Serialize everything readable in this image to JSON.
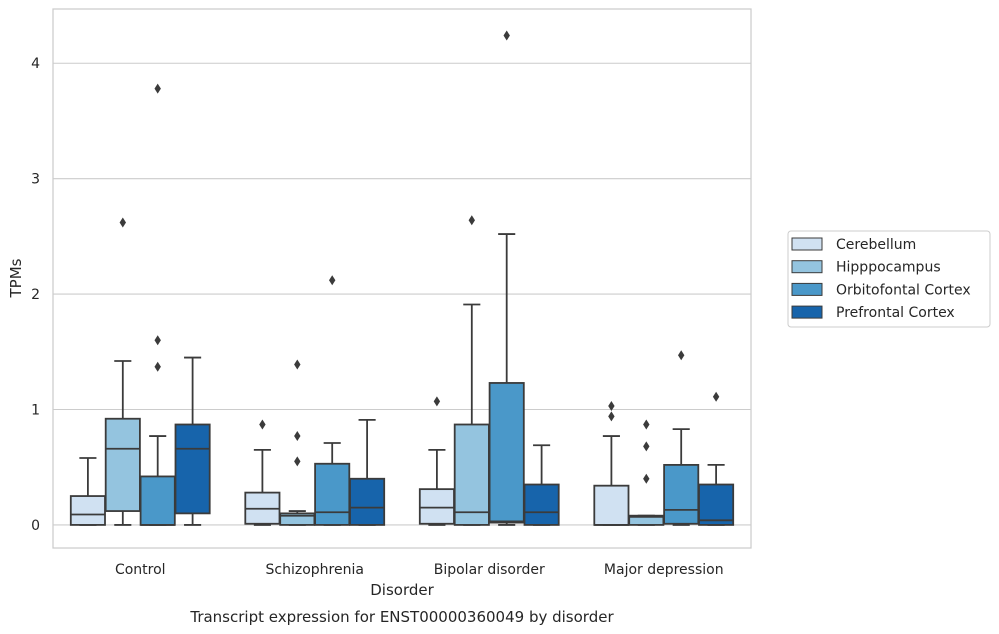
{
  "caption": "Transcript expression for ENST00000360049 by disorder",
  "chart_data": {
    "type": "box",
    "title": "",
    "xlabel": "Disorder",
    "ylabel": "TPMs",
    "ylim": [
      -0.2,
      4.47
    ],
    "yticks": [
      0,
      1,
      2,
      3,
      4
    ],
    "grid": true,
    "legend_position": "right",
    "categories": [
      "Control",
      "Schizophrenia",
      "Bipolar disorder",
      "Major depression"
    ],
    "series": [
      {
        "name": "Cerebellum",
        "color": "#d0e1f2",
        "boxes": [
          {
            "whislo": 0.0,
            "q1": 0.0,
            "med": 0.09,
            "q3": 0.25,
            "whishi": 0.58,
            "fliers": []
          },
          {
            "whislo": 0.0,
            "q1": 0.01,
            "med": 0.14,
            "q3": 0.28,
            "whishi": 0.65,
            "fliers": [
              0.87
            ]
          },
          {
            "whislo": 0.0,
            "q1": 0.01,
            "med": 0.15,
            "q3": 0.31,
            "whishi": 0.65,
            "fliers": [
              1.07
            ]
          },
          {
            "whislo": 0.0,
            "q1": 0.0,
            "med": 0.0,
            "q3": 0.34,
            "whishi": 0.77,
            "fliers": [
              0.94,
              1.03
            ]
          }
        ]
      },
      {
        "name": "Hipppocampus",
        "color": "#94c4df",
        "boxes": [
          {
            "whislo": 0.0,
            "q1": 0.12,
            "med": 0.66,
            "q3": 0.92,
            "whishi": 1.42,
            "fliers": [
              2.62
            ]
          },
          {
            "whislo": 0.0,
            "q1": 0.0,
            "med": 0.08,
            "q3": 0.1,
            "whishi": 0.12,
            "fliers": [
              0.55,
              0.77,
              1.39
            ]
          },
          {
            "whislo": 0.0,
            "q1": 0.0,
            "med": 0.11,
            "q3": 0.87,
            "whishi": 1.91,
            "fliers": [
              2.64
            ]
          },
          {
            "whislo": 0.0,
            "q1": 0.0,
            "med": 0.07,
            "q3": 0.08,
            "whishi": 0.08,
            "fliers": [
              0.4,
              0.68,
              0.87
            ]
          }
        ]
      },
      {
        "name": "Orbitofontal Cortex",
        "color": "#4a98c9",
        "boxes": [
          {
            "whislo": 0.0,
            "q1": 0.0,
            "med": 0.0,
            "q3": 0.42,
            "whishi": 0.77,
            "fliers": [
              1.37,
              1.6,
              3.78
            ]
          },
          {
            "whislo": 0.0,
            "q1": 0.0,
            "med": 0.11,
            "q3": 0.53,
            "whishi": 0.71,
            "fliers": [
              2.12
            ]
          },
          {
            "whislo": 0.0,
            "q1": 0.02,
            "med": 0.03,
            "q3": 1.23,
            "whishi": 2.52,
            "fliers": [
              4.24
            ]
          },
          {
            "whislo": 0.0,
            "q1": 0.01,
            "med": 0.13,
            "q3": 0.52,
            "whishi": 0.83,
            "fliers": [
              1.47
            ]
          }
        ]
      },
      {
        "name": "Prefrontal Cortex",
        "color": "#1764ab",
        "boxes": [
          {
            "whislo": 0.0,
            "q1": 0.1,
            "med": 0.66,
            "q3": 0.87,
            "whishi": 1.45,
            "fliers": []
          },
          {
            "whislo": 0.0,
            "q1": 0.0,
            "med": 0.15,
            "q3": 0.4,
            "whishi": 0.91,
            "fliers": []
          },
          {
            "whislo": 0.0,
            "q1": 0.0,
            "med": 0.11,
            "q3": 0.35,
            "whishi": 0.69,
            "fliers": []
          },
          {
            "whislo": 0.0,
            "q1": 0.0,
            "med": 0.04,
            "q3": 0.35,
            "whishi": 0.52,
            "fliers": [
              1.11
            ]
          }
        ]
      }
    ]
  }
}
